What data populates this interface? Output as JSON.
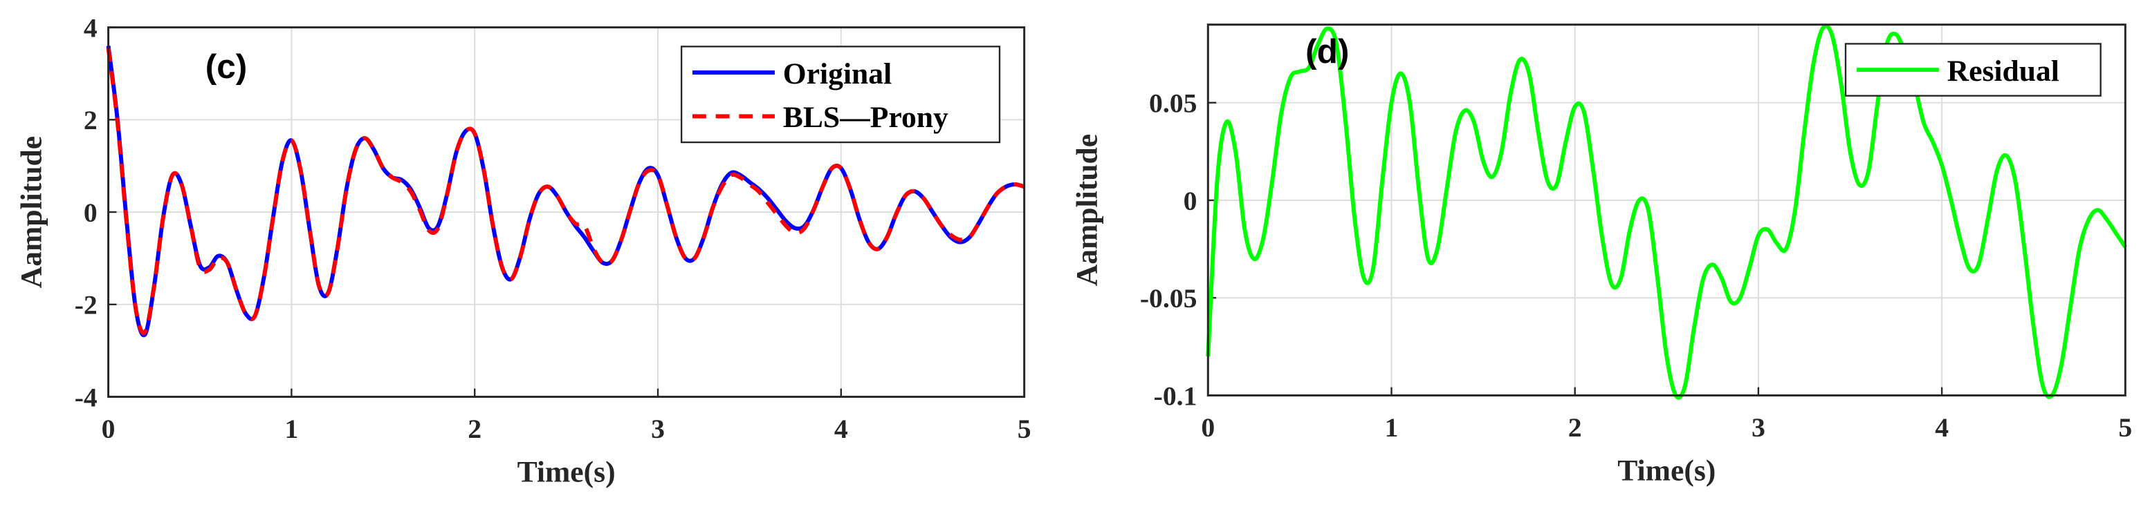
{
  "chart_data": [
    {
      "type": "line",
      "panel_label": "(c)",
      "xlabel": "Time(s)",
      "ylabel": "Aamplitude",
      "xlim": [
        0,
        5
      ],
      "xticks": [
        0,
        1,
        2,
        3,
        4,
        5
      ],
      "ylim": [
        -4,
        4
      ],
      "yticks": [
        -4,
        -2,
        0,
        2,
        4
      ],
      "grid": true,
      "legend": "upper right",
      "x": [
        0,
        0.05,
        0.1,
        0.15,
        0.2,
        0.25,
        0.3,
        0.35,
        0.4,
        0.45,
        0.5,
        0.55,
        0.6,
        0.65,
        0.7,
        0.75,
        0.8,
        0.85,
        0.9,
        0.95,
        1,
        1.05,
        1.1,
        1.15,
        1.2,
        1.25,
        1.3,
        1.35,
        1.4,
        1.45,
        1.5,
        1.55,
        1.6,
        1.65,
        1.7,
        1.75,
        1.8,
        1.85,
        1.9,
        1.95,
        2,
        2.05,
        2.1,
        2.15,
        2.2,
        2.25,
        2.3,
        2.35,
        2.4,
        2.45,
        2.5,
        2.55,
        2.6,
        2.65,
        2.7,
        2.75,
        2.8,
        2.85,
        2.9,
        2.95,
        3,
        3.05,
        3.1,
        3.15,
        3.2,
        3.25,
        3.3,
        3.35,
        3.4,
        3.45,
        3.5,
        3.55,
        3.6,
        3.65,
        3.7,
        3.75,
        3.8,
        3.85,
        3.9,
        3.95,
        4,
        4.05,
        4.1,
        4.15,
        4.2,
        4.25,
        4.3,
        4.35,
        4.4,
        4.45,
        4.5,
        4.55,
        4.6,
        4.65,
        4.7,
        4.75,
        4.8,
        4.85,
        4.9,
        4.95,
        5
      ],
      "series": [
        {
          "name": "Original",
          "color": "#0000ff",
          "linestyle": "solid",
          "values": [
            3.6,
            2.0,
            -0.2,
            -2.1,
            -2.65,
            -1.6,
            -0.1,
            0.8,
            0.6,
            -0.3,
            -1.15,
            -1.2,
            -0.95,
            -1.1,
            -1.7,
            -2.2,
            -2.25,
            -1.4,
            -0.1,
            1.1,
            1.55,
            0.9,
            -0.4,
            -1.6,
            -1.75,
            -0.8,
            0.5,
            1.35,
            1.6,
            1.35,
            0.95,
            0.75,
            0.7,
            0.5,
            0.1,
            -0.35,
            -0.3,
            0.4,
            1.3,
            1.75,
            1.7,
            0.9,
            -0.3,
            -1.2,
            -1.45,
            -0.95,
            -0.15,
            0.4,
            0.55,
            0.35,
            0.0,
            -0.3,
            -0.55,
            -0.85,
            -1.1,
            -1.05,
            -0.6,
            0.05,
            0.65,
            0.95,
            0.8,
            0.15,
            -0.55,
            -1.0,
            -1.0,
            -0.55,
            0.1,
            0.6,
            0.85,
            0.8,
            0.65,
            0.5,
            0.3,
            0.05,
            -0.2,
            -0.35,
            -0.3,
            0.05,
            0.55,
            0.95,
            0.95,
            0.5,
            -0.15,
            -0.65,
            -0.8,
            -0.55,
            -0.05,
            0.35,
            0.45,
            0.3,
            0.0,
            -0.3,
            -0.55,
            -0.65,
            -0.55,
            -0.25,
            0.1,
            0.4,
            0.55,
            0.6,
            0.55
          ]
        },
        {
          "name": "BLS—Prony",
          "color": "#ff0000",
          "linestyle": "dashed",
          "values": [
            3.55,
            1.95,
            -0.25,
            -2.1,
            -2.6,
            -1.6,
            -0.1,
            0.8,
            0.6,
            -0.3,
            -1.2,
            -1.25,
            -1.0,
            -1.1,
            -1.7,
            -2.2,
            -2.25,
            -1.4,
            -0.1,
            1.1,
            1.55,
            0.9,
            -0.4,
            -1.6,
            -1.75,
            -0.8,
            0.5,
            1.35,
            1.6,
            1.35,
            0.95,
            0.75,
            0.65,
            0.45,
            0.05,
            -0.4,
            -0.35,
            0.4,
            1.3,
            1.75,
            1.7,
            0.9,
            -0.3,
            -1.2,
            -1.45,
            -0.95,
            -0.15,
            0.4,
            0.55,
            0.35,
            0.0,
            -0.25,
            -0.3,
            -0.8,
            -1.1,
            -1.05,
            -0.6,
            0.05,
            0.65,
            0.9,
            0.8,
            0.15,
            -0.55,
            -1.0,
            -1.0,
            -0.55,
            0.1,
            0.55,
            0.8,
            0.75,
            0.6,
            0.45,
            0.2,
            -0.05,
            -0.3,
            -0.45,
            -0.35,
            0.05,
            0.55,
            0.95,
            0.95,
            0.5,
            -0.15,
            -0.65,
            -0.8,
            -0.55,
            -0.05,
            0.35,
            0.45,
            0.3,
            0.0,
            -0.3,
            -0.5,
            -0.6,
            -0.55,
            -0.25,
            0.1,
            0.4,
            0.55,
            0.6,
            0.55
          ]
        }
      ]
    },
    {
      "type": "line",
      "panel_label": "(d)",
      "xlabel": "Time(s)",
      "ylabel": "Aamplitude",
      "xlim": [
        0,
        5
      ],
      "xticks": [
        0,
        1,
        2,
        3,
        4,
        5
      ],
      "ylim": [
        -0.1,
        0.09
      ],
      "yticks": [
        -0.1,
        -0.05,
        0,
        0.05
      ],
      "grid": true,
      "legend": "upper right",
      "x": [
        0,
        0.05,
        0.1,
        0.15,
        0.2,
        0.25,
        0.3,
        0.35,
        0.4,
        0.45,
        0.5,
        0.55,
        0.6,
        0.65,
        0.7,
        0.75,
        0.8,
        0.85,
        0.9,
        0.95,
        1,
        1.05,
        1.1,
        1.15,
        1.2,
        1.25,
        1.3,
        1.35,
        1.4,
        1.45,
        1.5,
        1.55,
        1.6,
        1.65,
        1.7,
        1.75,
        1.8,
        1.85,
        1.9,
        1.95,
        2,
        2.05,
        2.1,
        2.15,
        2.2,
        2.25,
        2.3,
        2.35,
        2.4,
        2.45,
        2.5,
        2.55,
        2.6,
        2.65,
        2.7,
        2.75,
        2.8,
        2.85,
        2.9,
        2.95,
        3,
        3.05,
        3.1,
        3.15,
        3.2,
        3.25,
        3.3,
        3.35,
        3.4,
        3.45,
        3.5,
        3.55,
        3.6,
        3.65,
        3.7,
        3.75,
        3.8,
        3.85,
        3.9,
        3.95,
        4,
        4.05,
        4.1,
        4.15,
        4.2,
        4.25,
        4.3,
        4.35,
        4.4,
        4.45,
        4.5,
        4.55,
        4.6,
        4.65,
        4.7,
        4.75,
        4.8,
        4.85,
        4.9,
        4.95,
        5
      ],
      "series": [
        {
          "name": "Residual",
          "color": "#00ff00",
          "linestyle": "solid",
          "values": [
            -0.08,
            0.01,
            0.04,
            0.025,
            -0.015,
            -0.03,
            -0.02,
            0.01,
            0.045,
            0.063,
            0.066,
            0.068,
            0.08,
            0.088,
            0.08,
            0.04,
            -0.01,
            -0.04,
            -0.035,
            0.01,
            0.05,
            0.065,
            0.05,
            0.005,
            -0.03,
            -0.025,
            0.005,
            0.035,
            0.046,
            0.04,
            0.02,
            0.012,
            0.025,
            0.055,
            0.072,
            0.065,
            0.035,
            0.01,
            0.008,
            0.03,
            0.048,
            0.045,
            0.015,
            -0.02,
            -0.043,
            -0.04,
            -0.015,
            0.0,
            -0.005,
            -0.04,
            -0.08,
            -0.1,
            -0.095,
            -0.065,
            -0.04,
            -0.033,
            -0.04,
            -0.052,
            -0.05,
            -0.035,
            -0.018,
            -0.015,
            -0.022,
            -0.025,
            -0.005,
            0.035,
            0.07,
            0.088,
            0.085,
            0.06,
            0.025,
            0.008,
            0.015,
            0.05,
            0.08,
            0.085,
            0.075,
            0.06,
            0.04,
            0.03,
            0.018,
            0.0,
            -0.02,
            -0.035,
            -0.033,
            -0.01,
            0.015,
            0.023,
            0.01,
            -0.025,
            -0.065,
            -0.095,
            -0.1,
            -0.085,
            -0.055,
            -0.025,
            -0.01,
            -0.005,
            -0.01,
            -0.017,
            -0.024
          ]
        }
      ]
    }
  ]
}
